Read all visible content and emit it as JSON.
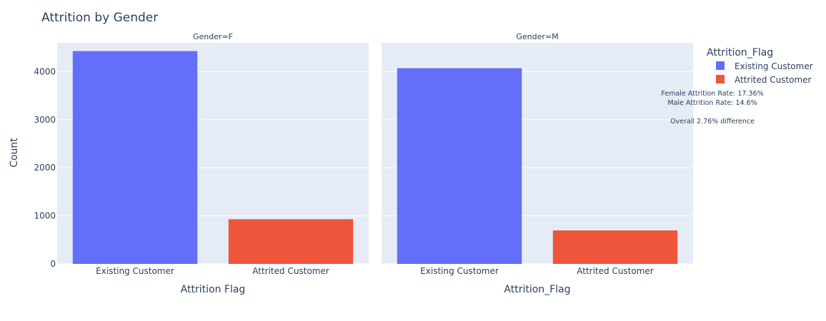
{
  "chart_data": {
    "type": "bar",
    "title": "Attrition by Gender",
    "ylabel": "Count",
    "ylim": [
      0,
      4600
    ],
    "yticks": [
      0,
      1000,
      2000,
      3000,
      4000
    ],
    "grid": true,
    "colors": {
      "Existing Customer": "#636efa",
      "Attrited Customer": "#ef553b",
      "plot_bg": "#e5ecf6"
    },
    "legend": {
      "title": "Attrition_Flag",
      "placement": "top-right",
      "entries": [
        "Existing Customer",
        "Attrited Customer"
      ]
    },
    "facets": [
      {
        "title": "Gender=F",
        "xlabel": "Attrition Flag",
        "categories": [
          "Existing Customer",
          "Attrited Customer"
        ],
        "values": [
          4428,
          930
        ]
      },
      {
        "title": "Gender=M",
        "xlabel": "Attrition_Flag",
        "categories": [
          "Existing Customer",
          "Attrited Customer"
        ],
        "values": [
          4072,
          697
        ]
      }
    ],
    "annotations": [
      "Female Attrition Rate: 17.36%",
      "Male Attrition Rate: 14.6%",
      "Overall 2.76% difference"
    ]
  }
}
